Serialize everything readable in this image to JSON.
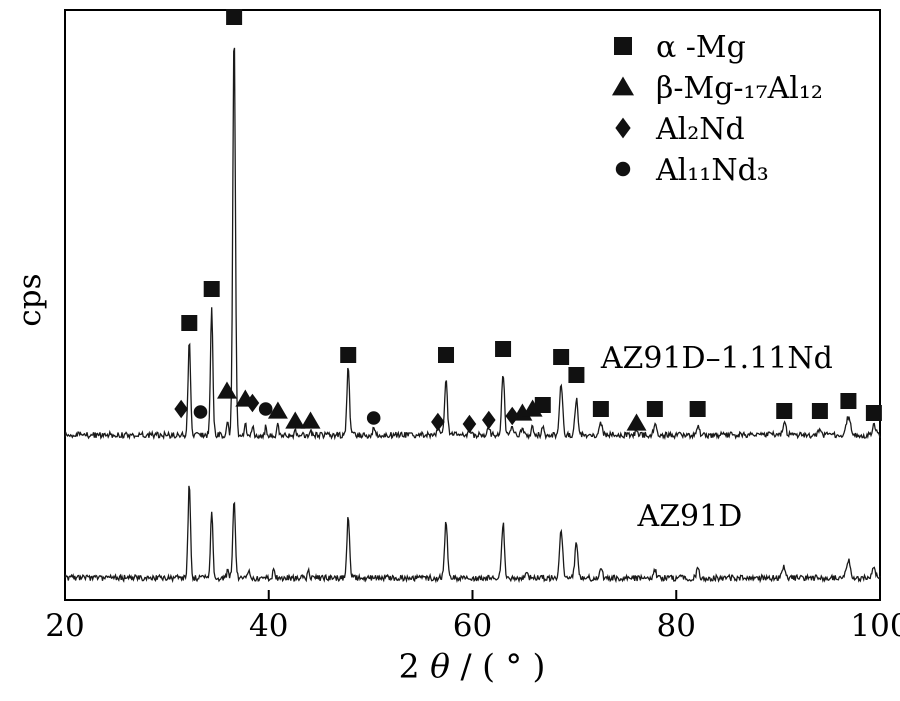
{
  "chart_data": {
    "type": "line",
    "chart_kind": "xrd-pattern",
    "title": "",
    "xlabel_parts": {
      "prefix": "2 ",
      "theta": "θ",
      "suffix": " / ( ° )"
    },
    "ylabel": "cps",
    "xlim": [
      20,
      100
    ],
    "xticks": [
      20,
      40,
      60,
      80,
      100
    ],
    "grid": false,
    "legend_position": "top-right",
    "legend": [
      {
        "marker": "square",
        "label": "α -Mg",
        "phase": "alpha-Mg"
      },
      {
        "marker": "triangle",
        "label": "β-Mg-₁₇Al₁₂",
        "phase": "beta-Mg17Al12"
      },
      {
        "marker": "diamond",
        "label": "Al₂Nd",
        "phase": "Al2Nd"
      },
      {
        "marker": "circle",
        "label": "Al₁₁Nd₃",
        "phase": "Al11Nd3"
      }
    ],
    "series": [
      {
        "name": "AZ91D–1.11Nd",
        "baseline": 165,
        "noise": 3,
        "peaks": [
          [
            32.2,
            95,
            0.28
          ],
          [
            34.4,
            126,
            0.28
          ],
          [
            36.6,
            405,
            0.3
          ],
          [
            35.95,
            16,
            0.2
          ],
          [
            37.7,
            12,
            0.2
          ],
          [
            38.4,
            10,
            0.2
          ],
          [
            39.7,
            8,
            0.2
          ],
          [
            40.9,
            10,
            0.22
          ],
          [
            42.6,
            5,
            0.2
          ],
          [
            44.1,
            5,
            0.2
          ],
          [
            47.8,
            68,
            0.3
          ],
          [
            50.3,
            6,
            0.25
          ],
          [
            56.6,
            6,
            0.25
          ],
          [
            57.4,
            56,
            0.32
          ],
          [
            59.7,
            5,
            0.25
          ],
          [
            61.6,
            8,
            0.25
          ],
          [
            63.0,
            62,
            0.32
          ],
          [
            63.9,
            9,
            0.25
          ],
          [
            64.9,
            9,
            0.25
          ],
          [
            65.9,
            9,
            0.25
          ],
          [
            66.9,
            8,
            0.25
          ],
          [
            68.7,
            52,
            0.35
          ],
          [
            70.2,
            36,
            0.35
          ],
          [
            72.6,
            12,
            0.3
          ],
          [
            76.1,
            5,
            0.3
          ],
          [
            77.9,
            10,
            0.3
          ],
          [
            82.1,
            9,
            0.35
          ],
          [
            90.6,
            11,
            0.4
          ],
          [
            94.1,
            5,
            0.35
          ],
          [
            96.9,
            19,
            0.45
          ],
          [
            99.4,
            9,
            0.4
          ]
        ]
      },
      {
        "name": "AZ91D",
        "baseline": 22,
        "noise": 3,
        "peaks": [
          [
            32.2,
            96,
            0.28
          ],
          [
            34.4,
            68,
            0.28
          ],
          [
            36.6,
            80,
            0.3
          ],
          [
            36.0,
            10,
            0.2
          ],
          [
            38.0,
            8,
            0.2
          ],
          [
            40.5,
            10,
            0.22
          ],
          [
            43.9,
            6,
            0.2
          ],
          [
            47.8,
            62,
            0.3
          ],
          [
            57.4,
            58,
            0.32
          ],
          [
            63.0,
            55,
            0.32
          ],
          [
            65.3,
            7,
            0.3
          ],
          [
            68.7,
            46,
            0.35
          ],
          [
            70.2,
            34,
            0.35
          ],
          [
            72.6,
            11,
            0.3
          ],
          [
            77.9,
            9,
            0.3
          ],
          [
            82.1,
            8,
            0.35
          ],
          [
            90.6,
            11,
            0.4
          ],
          [
            96.9,
            18,
            0.45
          ],
          [
            99.4,
            9,
            0.4
          ]
        ]
      }
    ],
    "annotations": [
      {
        "text": "AZ91D–1.11Nd",
        "x": 72.6,
        "y": 232
      },
      {
        "text": "AZ91D",
        "x": 76.2,
        "y": 74
      }
    ],
    "markers": {
      "square": [
        [
          32.2,
          277
        ],
        [
          34.4,
          311
        ],
        [
          36.6,
          583
        ],
        [
          47.8,
          245
        ],
        [
          57.4,
          245
        ],
        [
          63.0,
          251
        ],
        [
          66.9,
          195
        ],
        [
          68.7,
          243
        ],
        [
          70.2,
          225
        ],
        [
          72.6,
          191
        ],
        [
          77.9,
          191
        ],
        [
          82.1,
          191
        ],
        [
          90.6,
          189
        ],
        [
          94.1,
          189
        ],
        [
          96.9,
          199
        ],
        [
          99.4,
          187
        ]
      ],
      "triangle": [
        [
          35.9,
          209
        ],
        [
          37.7,
          201
        ],
        [
          40.9,
          189
        ],
        [
          42.6,
          179
        ],
        [
          44.1,
          179
        ],
        [
          64.9,
          187
        ],
        [
          65.9,
          191
        ],
        [
          76.1,
          177
        ]
      ],
      "diamond": [
        [
          31.4,
          191
        ],
        [
          38.4,
          197
        ],
        [
          56.6,
          178
        ],
        [
          59.7,
          176
        ],
        [
          61.6,
          180
        ],
        [
          63.9,
          184
        ]
      ],
      "circle": [
        [
          33.3,
          188
        ],
        [
          39.7,
          191
        ],
        [
          50.3,
          182
        ]
      ]
    }
  }
}
